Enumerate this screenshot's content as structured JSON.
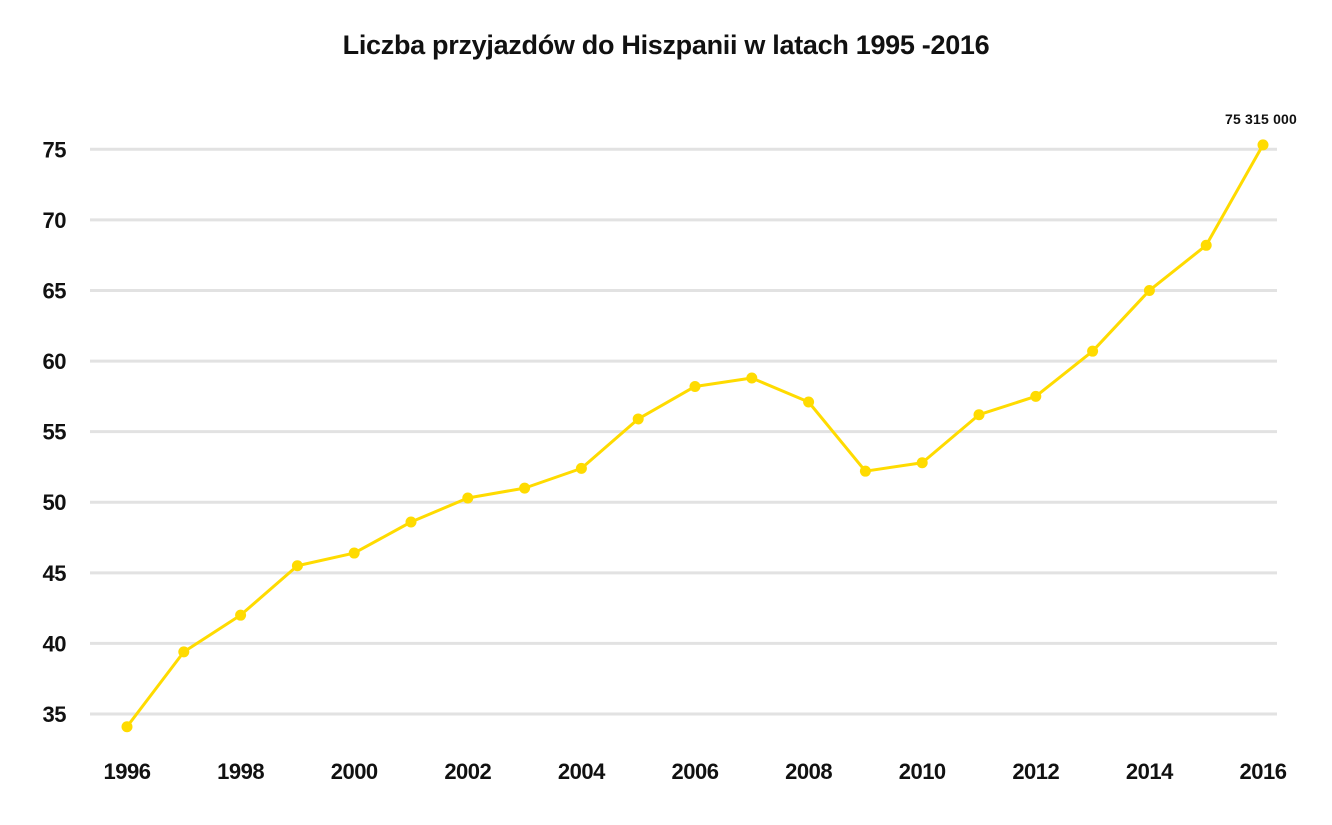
{
  "title": "Liczba przyjazdów do Hiszpanii w latach 1995 -2016",
  "colors": {
    "line": "#ffdb00",
    "marker": "#ffdb00",
    "grid": "#e2e2e2",
    "text": "#111111",
    "background": "#ffffff"
  },
  "chart_data": {
    "type": "line",
    "title": "Liczba przyjazdów do Hiszpanii w latach 1995 -2016",
    "x": [
      1996,
      1997,
      1998,
      1999,
      2000,
      2001,
      2002,
      2003,
      2004,
      2005,
      2006,
      2007,
      2008,
      2009,
      2010,
      2011,
      2012,
      2013,
      2014,
      2015,
      2016
    ],
    "values": [
      34.1,
      39.4,
      42.0,
      45.5,
      46.4,
      48.6,
      50.3,
      51.0,
      52.4,
      55.9,
      58.2,
      58.8,
      57.1,
      52.2,
      52.8,
      56.2,
      57.5,
      60.7,
      65.0,
      68.2,
      75.315
    ],
    "x_tick_labels": [
      "1996",
      "1998",
      "2000",
      "2002",
      "2004",
      "2006",
      "2008",
      "2010",
      "2012",
      "2014",
      "2016"
    ],
    "y_ticks": [
      35,
      40,
      45,
      50,
      55,
      60,
      65,
      70,
      75
    ],
    "ylim": [
      35,
      75
    ],
    "grid": "horizontal-only",
    "legend": "none",
    "marker": "circle",
    "last_point_label": "75 315 000"
  }
}
